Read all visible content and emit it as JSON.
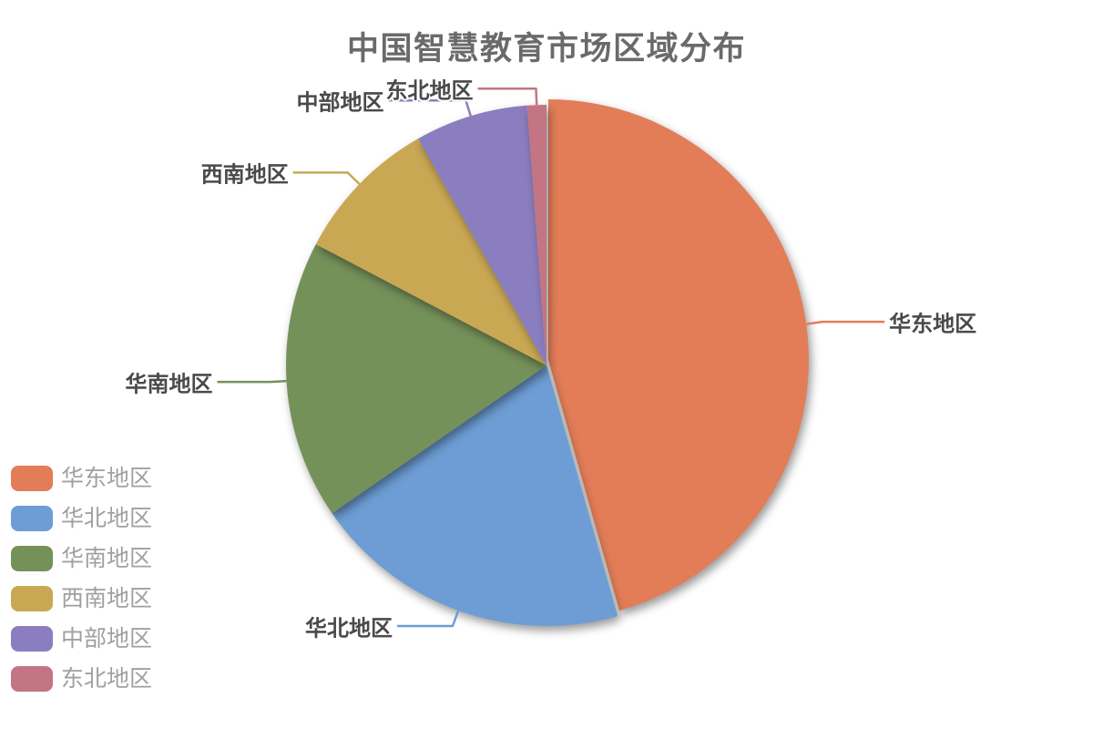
{
  "chart_data": {
    "type": "pie",
    "title": "中国智慧教育市场区域分布",
    "categories": [
      "华东地区",
      "华北地区",
      "华南地区",
      "西南地区",
      "中部地区",
      "东北地区"
    ],
    "values": [
      45.6,
      19.8,
      17.3,
      9.1,
      7.0,
      1.2
    ],
    "unit": "percent share (estimated from slice angles)",
    "colors": [
      "#E27D58",
      "#6D9DD4",
      "#75915A",
      "#C9A854",
      "#8B7EC0",
      "#C37583"
    ],
    "title_color": "#6A6A6A",
    "label_color": "#4A4A4A",
    "legend_text_color": "#A0A0A0",
    "legend_position": "bottom-left",
    "start_angle": "12 o'clock",
    "direction": "clockwise",
    "exploded_slice_index": 0,
    "exploded_slice_label": "华东地区",
    "grid": false
  }
}
